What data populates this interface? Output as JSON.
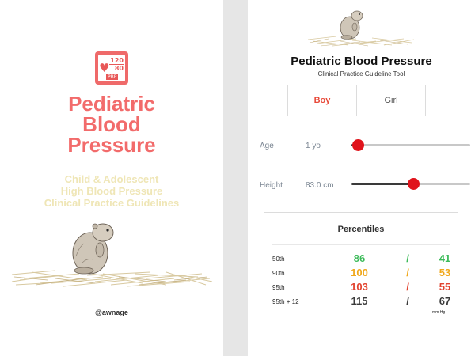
{
  "splash": {
    "logo": {
      "systolic": "120",
      "diastolic": "80",
      "abbr": "PBP"
    },
    "title_lines": [
      "Pediatric",
      "Blood",
      "Pressure"
    ],
    "subtitle_lines": [
      "Child & Adolescent",
      "High Blood Pressure",
      "Clinical Practice Guidelines"
    ],
    "author": "@awnage"
  },
  "tool": {
    "title": "Pediatric Blood Pressure",
    "subtitle": "Clinical Practice Guideline Tool",
    "sex_options": [
      {
        "label": "Boy",
        "selected": true
      },
      {
        "label": "Girl",
        "selected": false
      }
    ],
    "age": {
      "label": "Age",
      "value": "1 yo",
      "slider_fraction": 0.05
    },
    "height": {
      "label": "Height",
      "value": "83.0 cm",
      "slider_fraction": 0.52
    },
    "percentiles": {
      "title": "Percentiles",
      "units": "mm Hg",
      "rows": [
        {
          "name": "50th",
          "systolic": "86",
          "diastolic": "41",
          "color": "#3dbb5a"
        },
        {
          "name": "90th",
          "systolic": "100",
          "diastolic": "53",
          "color": "#f0a81c"
        },
        {
          "name": "95th",
          "systolic": "103",
          "diastolic": "55",
          "color": "#e2432f"
        },
        {
          "name": "95th + 12",
          "systolic": "115",
          "diastolic": "67",
          "color": "#3a3a3a"
        }
      ],
      "separator": "/"
    }
  },
  "colors": {
    "brand_red": "#f26b6b",
    "subtitle_cream": "#efe6b6",
    "slider_thumb": "#e0141c"
  }
}
